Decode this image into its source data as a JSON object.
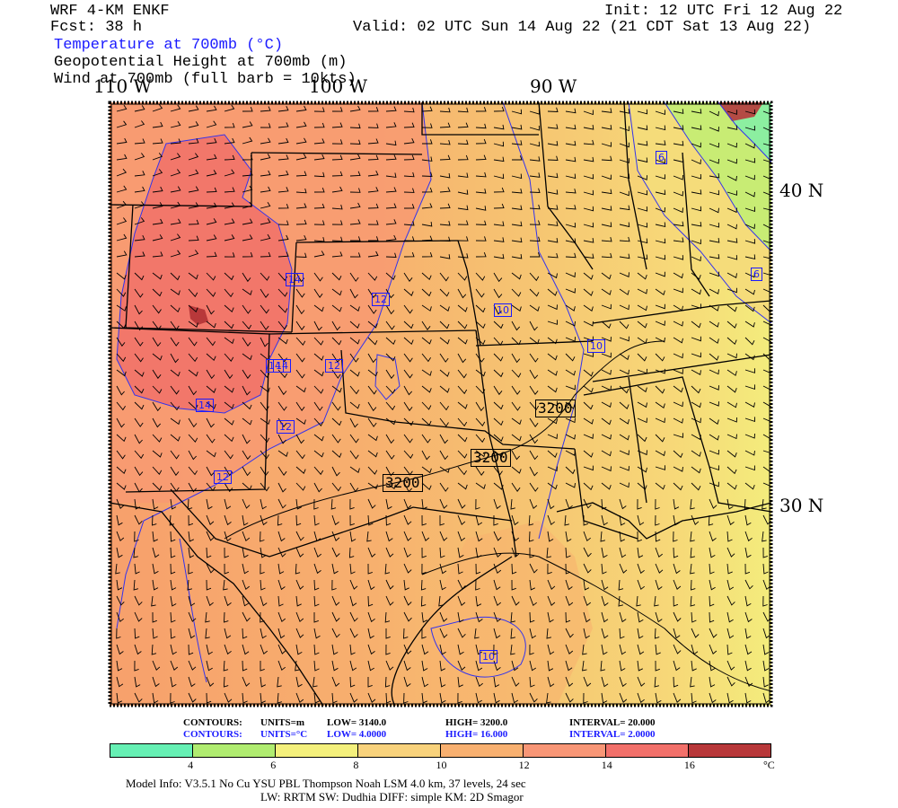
{
  "header": {
    "model": "WRF 4-KM ENKF",
    "fcst": "Fcst:   38 h",
    "init": "Init: 12 UTC Fri 12 Aug 22",
    "valid": "Valid: 02 UTC Sun 14 Aug 22 (21 CDT Sat 13 Aug 22)",
    "field1": "Temperature at 700mb (°C)",
    "field2": "Geopotential Height at 700mb (m)",
    "field3": "Wind at 700mb (full barb = 10kts)"
  },
  "axes": {
    "lon_labels": [
      "110 W",
      "100 W",
      "90 W"
    ],
    "lat_labels": [
      "40 N",
      "30 N"
    ]
  },
  "map": {
    "temp_contour_labels": [
      "14",
      "14",
      "14",
      "14",
      "12",
      "12",
      "12",
      "12",
      "10",
      "10",
      "6",
      "6",
      "10"
    ],
    "height_contour_labels": [
      "3200",
      "3200",
      "3200"
    ]
  },
  "contours_info": {
    "height": {
      "label": "CONTOURS:",
      "units": "UNITS=m",
      "low": "LOW=  3140.0",
      "high": "HIGH=  3200.0",
      "interval": "INTERVAL=    20.000"
    },
    "temp": {
      "label": "CONTOURS:",
      "units": "UNITS=°C",
      "low": "LOW=  4.0000",
      "high": "HIGH=  16.000",
      "interval": "INTERVAL=  2.0000"
    }
  },
  "colorbar": {
    "colors": [
      "#66f0b4",
      "#b0ec70",
      "#f4f07c",
      "#f8d27c",
      "#f8b070",
      "#f89676",
      "#f2706a",
      "#b8383a"
    ],
    "tick_labels": [
      "4",
      "6",
      "8",
      "10",
      "12",
      "14",
      "16"
    ],
    "unit": "°C"
  },
  "footer": {
    "line1": "Model Info: V3.5.1   No Cu   YSU PBL  Thompson     Noah LSM  4.0 km,  37 levels,   24 sec",
    "line2": "LW: RRTM SW: Dudhia  DIFF: simple KM: 2D Smagor"
  }
}
